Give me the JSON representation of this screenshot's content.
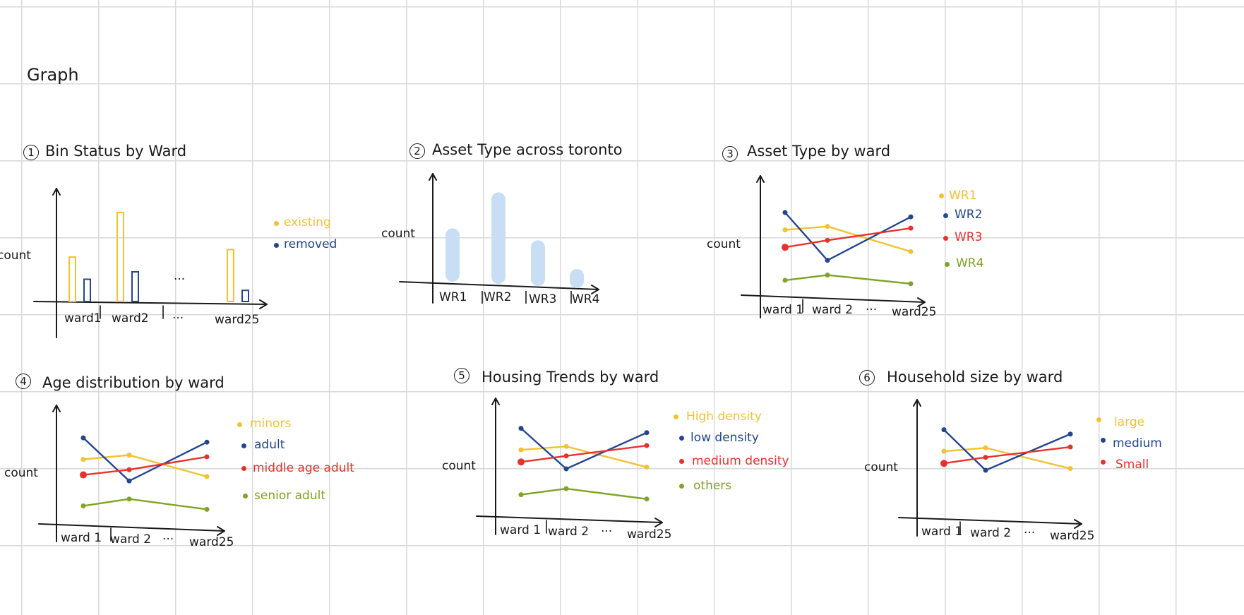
{
  "page_title": "Graph",
  "colors": {
    "yellow": "#f2c230",
    "blue": "#23468f",
    "red": "#e5322d",
    "green": "#7fa428",
    "light_blue": "#c8def5",
    "ink": "#1a1a1a"
  },
  "graphs": [
    {
      "number": "1",
      "title": "Bin Status by Ward",
      "ylabel": "count",
      "x_labels": [
        "ward1",
        "ward2",
        "···",
        "ward25"
      ],
      "legend": [
        {
          "label": "existing",
          "color": "#f2c230"
        },
        {
          "label": "removed",
          "color": "#23468f"
        }
      ],
      "chart_data": {
        "type": "bar",
        "categories": [
          "ward1",
          "ward2",
          "ward25"
        ],
        "series": [
          {
            "name": "existing",
            "values": [
              6,
              12,
              7
            ]
          },
          {
            "name": "removed",
            "values": [
              3,
              4,
              1.5
            ]
          }
        ],
        "ylabel": "count"
      }
    },
    {
      "number": "2",
      "title": "Asset Type across toronto",
      "ylabel": "count",
      "x_labels": [
        "WR1",
        "WR2",
        "WR3",
        "WR4"
      ],
      "chart_data": {
        "type": "bar",
        "categories": [
          "WR1",
          "WR2",
          "WR3",
          "WR4"
        ],
        "values": [
          7,
          12,
          6,
          2.5
        ],
        "ylabel": "count"
      }
    },
    {
      "number": "3",
      "title": "Asset Type by ward",
      "ylabel": "count",
      "x_labels": [
        "ward 1",
        "ward 2",
        "···",
        "ward25"
      ],
      "legend": [
        {
          "label": "WR1",
          "color": "#f2c230"
        },
        {
          "label": "WR2",
          "color": "#23468f"
        },
        {
          "label": "WR3",
          "color": "#e5322d"
        },
        {
          "label": "WR4",
          "color": "#7fa428"
        }
      ],
      "chart_data": {
        "type": "line",
        "x": [
          "ward 1",
          "ward 2",
          "ward25"
        ],
        "series": [
          {
            "name": "WR1",
            "values": [
              8,
              8.4,
              5.5
            ]
          },
          {
            "name": "WR2",
            "values": [
              10,
              4.5,
              9.5
            ]
          },
          {
            "name": "WR3",
            "values": [
              6,
              6.8,
              8.2
            ]
          },
          {
            "name": "WR4",
            "values": [
              2.2,
              2.8,
              1.8
            ]
          }
        ],
        "ylabel": "count"
      }
    },
    {
      "number": "4",
      "title": "Age distribution by ward",
      "ylabel": "count",
      "x_labels": [
        "ward 1",
        "ward 2",
        "···",
        "ward25"
      ],
      "legend": [
        {
          "label": "minors",
          "color": "#f2c230"
        },
        {
          "label": "adult",
          "color": "#23468f"
        },
        {
          "label": "middle age adult",
          "color": "#e5322d"
        },
        {
          "label": "senior adult",
          "color": "#7fa428"
        }
      ],
      "chart_data": {
        "type": "line",
        "x": [
          "ward 1",
          "ward 2",
          "ward25"
        ],
        "series": [
          {
            "name": "minors",
            "values": [
              7,
              7.5,
              5
            ]
          },
          {
            "name": "adult",
            "values": [
              9.5,
              4.5,
              9
            ]
          },
          {
            "name": "middle age adult",
            "values": [
              5.2,
              5.8,
              7.3
            ]
          },
          {
            "name": "senior adult",
            "values": [
              1.6,
              2.4,
              1.2
            ]
          }
        ],
        "ylabel": "count"
      }
    },
    {
      "number": "5",
      "title": "Housing Trends by ward",
      "ylabel": "count",
      "x_labels": [
        "ward 1",
        "ward 2",
        "···",
        "ward25"
      ],
      "legend": [
        {
          "label": "High density",
          "color": "#f2c230"
        },
        {
          "label": "low density",
          "color": "#23468f"
        },
        {
          "label": "medium density",
          "color": "#e5322d"
        },
        {
          "label": "others",
          "color": "#7fa428"
        }
      ],
      "chart_data": {
        "type": "line",
        "x": [
          "ward 1",
          "ward 2",
          "ward25"
        ],
        "series": [
          {
            "name": "High density",
            "values": [
              7.2,
              7.6,
              5.2
            ]
          },
          {
            "name": "low density",
            "values": [
              9.7,
              5,
              9.2
            ]
          },
          {
            "name": "medium density",
            "values": [
              5.8,
              6.5,
              7.7
            ]
          },
          {
            "name": "others",
            "values": [
              2,
              2.7,
              1.5
            ]
          }
        ],
        "ylabel": "count"
      }
    },
    {
      "number": "6",
      "title": "Household size by ward",
      "ylabel": "count",
      "x_labels": [
        "ward 1",
        "ward 2",
        "···",
        "ward25"
      ],
      "legend": [
        {
          "label": "large",
          "color": "#f2c230"
        },
        {
          "label": "medium",
          "color": "#23468f"
        },
        {
          "label": "Small",
          "color": "#e5322d"
        }
      ],
      "chart_data": {
        "type": "line",
        "x": [
          "ward 1",
          "ward 2",
          "ward25"
        ],
        "series": [
          {
            "name": "large",
            "values": [
              7.2,
              7.6,
              5.2
            ]
          },
          {
            "name": "medium",
            "values": [
              9.7,
              5,
              9.2
            ]
          },
          {
            "name": "Small",
            "values": [
              5.8,
              6.5,
              7.7
            ]
          }
        ],
        "ylabel": "count"
      }
    }
  ]
}
